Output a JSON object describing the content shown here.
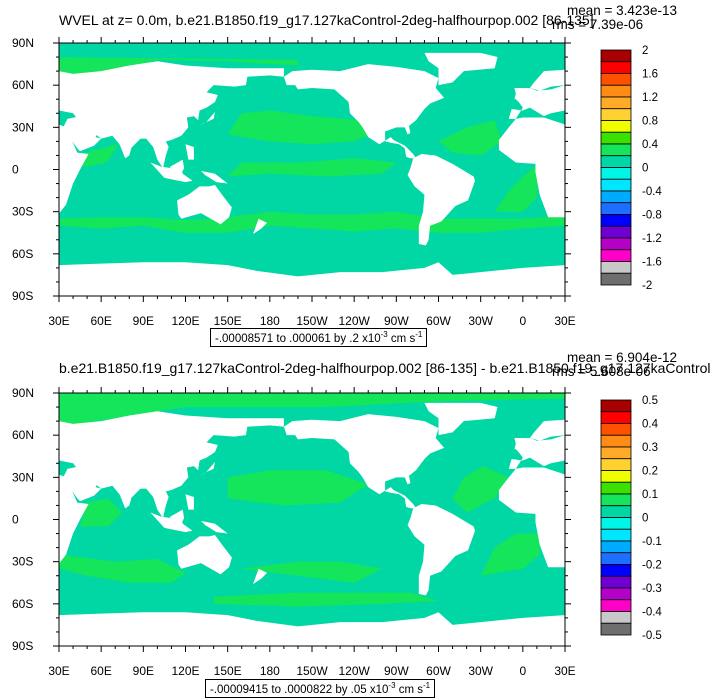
{
  "colors": {
    "ocean_primary": "#00d7a5",
    "ocean_secondary": "#14e55a",
    "land": "#ffffff",
    "frame": "#000000"
  },
  "chart_data": [
    {
      "type": "heatmap",
      "title": "WVEL at z=   0.0m, b.e21.B1850.f19_g17.127kaControl-2deg-halfhourpop.002 [86-135]",
      "mean_text": "mean = 3.423e-13",
      "rms_text": "rms = 7.39e-06",
      "x_ticks": [
        "30E",
        "60E",
        "90E",
        "120E",
        "150E",
        "180",
        "150W",
        "120W",
        "90W",
        "60W",
        "30W",
        "0",
        "30E"
      ],
      "y_ticks": [
        "90N",
        "60N",
        "30N",
        "0",
        "30S",
        "60S",
        "90S"
      ],
      "x_range": [
        30,
        390
      ],
      "y_range": [
        -90,
        90
      ],
      "colorbar": {
        "labels": [
          "2",
          "1.6",
          "1.2",
          "0.8",
          "0.4",
          "0",
          "-0.4",
          "-0.8",
          "-1.2",
          "-1.6",
          "-2"
        ],
        "colors": [
          "#a80000",
          "#ff0000",
          "#ff5000",
          "#ff8c14",
          "#ffaa28",
          "#ffd232",
          "#f0ff00",
          "#3ce100",
          "#14e55a",
          "#00d7a5",
          "#00f5e6",
          "#00e6ff",
          "#00aaff",
          "#1e6eff",
          "#0000ff",
          "#6e00d2",
          "#b400c8",
          "#ff00c8",
          "#c8c8c8",
          "#6e6e6e"
        ]
      },
      "range_text": "-.00008571 to .000061 by .2 x10",
      "range_exp": "-3",
      "range_unit": " cm s",
      "range_unit_exp": "-1"
    },
    {
      "type": "heatmap",
      "title": "b.e21.B1850.f19_g17.127kaControl-2deg-halfhourpop.002 [86-135] - b.e21.B1850.f19_g17.127kaControl",
      "mean_text": "mean = 6.904e-12",
      "rms_text": "rms = 5.608e-06",
      "x_ticks": [
        "30E",
        "60E",
        "90E",
        "120E",
        "150E",
        "180",
        "150W",
        "120W",
        "90W",
        "60W",
        "30W",
        "0",
        "30E"
      ],
      "y_ticks": [
        "90N",
        "60N",
        "30N",
        "0",
        "30S",
        "60S",
        "90S"
      ],
      "x_range": [
        30,
        390
      ],
      "y_range": [
        -90,
        90
      ],
      "colorbar": {
        "labels": [
          "0.5",
          "0.4",
          "0.3",
          "0.2",
          "0.1",
          "0",
          "-0.1",
          "-0.2",
          "-0.3",
          "-0.4",
          "-0.5"
        ],
        "colors": [
          "#a80000",
          "#ff0000",
          "#ff5000",
          "#ff8c14",
          "#ffaa28",
          "#ffd232",
          "#f0ff00",
          "#3ce100",
          "#14e55a",
          "#00d7a5",
          "#00f5e6",
          "#00e6ff",
          "#00aaff",
          "#1e6eff",
          "#0000ff",
          "#6e00d2",
          "#b400c8",
          "#ff00c8",
          "#c8c8c8",
          "#6e6e6e"
        ]
      },
      "range_text": "-.00009415 to .0000822 by .05 x10",
      "range_exp": "-3",
      "range_unit": " cm s",
      "range_unit_exp": "-1"
    }
  ]
}
